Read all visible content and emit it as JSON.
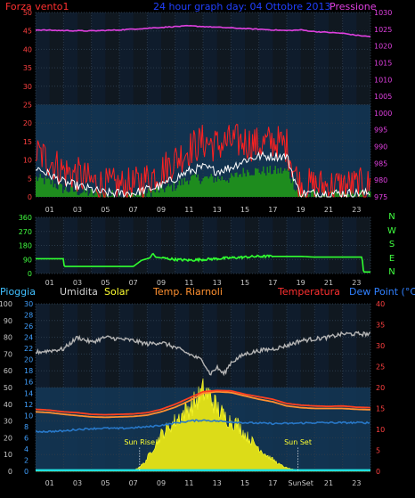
{
  "chart_data": [
    {
      "type": "line",
      "title": "24 hour graph day: 04 Ottobre 2013",
      "left_axis_title": "Forza vento1",
      "right_axis_title": "Pressione",
      "x_ticks": [
        "01",
        "03",
        "05",
        "07",
        "09",
        "11",
        "13",
        "15",
        "17",
        "19",
        "21",
        "23"
      ],
      "x_range_hours": [
        0,
        24
      ],
      "ylim_left": [
        0,
        50
      ],
      "y_ticks_left": [
        0,
        5,
        10,
        15,
        20,
        25,
        30,
        35,
        40,
        45,
        50
      ],
      "ylim_right": [
        975,
        1030
      ],
      "y_ticks_right": [
        975,
        980,
        985,
        990,
        995,
        1000,
        1005,
        1010,
        1015,
        1020,
        1025,
        1030
      ],
      "grid": true,
      "series": [
        {
          "key": "pressure",
          "axis": "right",
          "color": "#e040e0",
          "x": [
            0,
            2,
            4,
            6,
            8,
            10,
            11,
            12,
            14,
            16,
            17,
            18,
            19,
            20,
            22,
            23,
            24
          ],
          "y": [
            1024.8,
            1024.6,
            1024.5,
            1024.8,
            1025.3,
            1025.8,
            1026.0,
            1025.8,
            1025.4,
            1025.0,
            1024.8,
            1024.6,
            1024.8,
            1024.3,
            1023.8,
            1023.2,
            1022.8
          ]
        },
        {
          "key": "wind_gust",
          "axis": "left",
          "color": "#ff2020",
          "x": [
            0,
            1,
            2,
            3,
            4,
            5,
            6,
            7,
            8,
            9,
            10,
            11,
            12,
            13,
            14,
            15,
            16,
            17,
            18,
            18.8,
            19,
            20,
            21,
            22,
            23,
            24
          ],
          "y": [
            12,
            10,
            7,
            6,
            4,
            3,
            3,
            3,
            5,
            7,
            10,
            13,
            15,
            14,
            15,
            15,
            14,
            15,
            14,
            4,
            3,
            3,
            3,
            3,
            3,
            3
          ]
        },
        {
          "key": "wind_avg",
          "axis": "left",
          "color": "#ffffff",
          "x": [
            0,
            1,
            2,
            3,
            4,
            5,
            6,
            7,
            8,
            9,
            10,
            11,
            12,
            13,
            14,
            15,
            16,
            17,
            18,
            18.8,
            19,
            20,
            21,
            22,
            23,
            24
          ],
          "y": [
            8,
            6,
            4,
            3,
            2,
            1,
            1,
            1,
            2,
            3,
            5,
            7,
            8,
            7,
            8,
            10,
            11,
            11,
            11,
            2,
            1,
            1,
            1,
            1,
            1,
            1
          ]
        },
        {
          "key": "wind_fill",
          "axis": "left",
          "color": "#1e8c1e",
          "x": [
            0,
            1,
            2,
            3,
            4,
            5,
            6,
            7,
            8,
            9,
            10,
            11,
            12,
            13,
            14,
            15,
            16,
            17,
            18,
            18.8,
            19,
            20,
            21,
            22,
            23,
            24
          ],
          "y": [
            5,
            4,
            2,
            1.5,
            1,
            0.5,
            0.5,
            0.5,
            1,
            2,
            3,
            5,
            5,
            5,
            5,
            7,
            7,
            7,
            7,
            1,
            0.5,
            0.5,
            0.5,
            0.5,
            0.5,
            0.5
          ]
        }
      ]
    },
    {
      "type": "line",
      "x_ticks": [
        "01",
        "03",
        "05",
        "07",
        "09",
        "11",
        "13",
        "15",
        "17",
        "19",
        "21",
        "23"
      ],
      "ylim": [
        0,
        360
      ],
      "y_ticks": [
        0,
        90,
        180,
        270,
        360
      ],
      "compass_labels": [
        "N",
        "W",
        "S",
        "E",
        "N"
      ],
      "grid": true,
      "series": [
        {
          "key": "wind_dir",
          "color": "#30ff30",
          "x": [
            0,
            2,
            2.05,
            5,
            7,
            7.6,
            8.2,
            8.4,
            8.6,
            9,
            10,
            11,
            12,
            13,
            14,
            15,
            16,
            17,
            18,
            19,
            20,
            21,
            22,
            23,
            23.4,
            23.5,
            24
          ],
          "y": [
            95,
            95,
            45,
            45,
            45,
            85,
            100,
            130,
            105,
            100,
            90,
            85,
            90,
            95,
            100,
            105,
            110,
            110,
            110,
            110,
            105,
            105,
            105,
            105,
            105,
            10,
            10
          ]
        }
      ]
    },
    {
      "type": "line",
      "legend": [
        "Pioggia",
        "Umidita",
        "Solar",
        "Temp. Riarnoli",
        "Temperatura",
        "Dew Point (°C)"
      ],
      "x_ticks": [
        "01",
        "03",
        "05",
        "07",
        "09",
        "11",
        "13",
        "15",
        "17",
        "19",
        "21",
        "23"
      ],
      "x_tick_special": "SunSet",
      "ylim_left": [
        0,
        100
      ],
      "y_ticks_left": [
        0,
        10,
        20,
        30,
        40,
        50,
        60,
        70,
        80,
        90,
        100
      ],
      "y_ticks_inner": [
        0,
        2,
        4,
        6,
        8,
        10,
        12,
        14,
        16,
        18,
        20,
        22,
        24,
        26,
        28,
        30
      ],
      "ylim_right": [
        0,
        40
      ],
      "y_ticks_right": [
        0,
        5,
        10,
        15,
        20,
        25,
        30,
        35,
        40
      ],
      "annotations": {
        "sunrise_label": "Sun Rise",
        "sunrise_hour": 7.45,
        "sunset_label": "Sun Set",
        "sunset_hour": 18.8
      },
      "grid": true,
      "series": [
        {
          "key": "humidity",
          "axis": "left",
          "color": "#b4b4b4",
          "x": [
            0,
            1,
            2,
            3,
            4,
            5,
            6,
            7,
            8,
            9,
            10,
            11,
            12,
            12.5,
            13,
            13.5,
            14,
            15,
            16,
            17,
            18,
            19,
            20,
            21,
            22,
            23,
            24
          ],
          "y": [
            71,
            72,
            73,
            80,
            77,
            80,
            79,
            78,
            76,
            77,
            74,
            70,
            66,
            58,
            62,
            58,
            65,
            70,
            72,
            73,
            75,
            78,
            79,
            80,
            82,
            82,
            82
          ]
        },
        {
          "key": "solar",
          "axis": "left",
          "color": "#ffff30",
          "fill": "#dcdc18",
          "x": [
            0,
            7,
            7.8,
            8.5,
            9,
            10,
            11,
            11.5,
            12,
            12.5,
            13,
            13.5,
            14,
            14.5,
            15,
            15.5,
            16,
            16.5,
            17,
            17.5,
            18,
            18.5,
            19,
            24
          ],
          "y": [
            0,
            0,
            5,
            15,
            22,
            30,
            38,
            42,
            48,
            45,
            38,
            33,
            30,
            28,
            22,
            18,
            14,
            10,
            7,
            4,
            2,
            1,
            0,
            0
          ]
        },
        {
          "key": "temperature",
          "axis": "right",
          "color": "#ff4020",
          "x": [
            0,
            1,
            2,
            3,
            4,
            5,
            6,
            7,
            8,
            9,
            10,
            11,
            12,
            13,
            14,
            15,
            16,
            17,
            18,
            19,
            20,
            21,
            22,
            23,
            24
          ],
          "y": [
            14.8,
            14.6,
            14.2,
            14.0,
            13.6,
            13.5,
            13.6,
            13.7,
            14.0,
            14.8,
            16.0,
            17.5,
            19.0,
            19.3,
            19.2,
            18.4,
            17.8,
            17.2,
            16.2,
            15.8,
            15.6,
            15.5,
            15.6,
            15.3,
            15.2
          ]
        },
        {
          "key": "temp_apparent",
          "axis": "right",
          "color": "#ff9030",
          "x": [
            0,
            1,
            2,
            3,
            4,
            5,
            6,
            7,
            8,
            9,
            10,
            11,
            12,
            13,
            14,
            15,
            16,
            17,
            18,
            19,
            20,
            21,
            22,
            23,
            24
          ],
          "y": [
            14.2,
            14.0,
            13.6,
            13.3,
            13.0,
            12.9,
            13.0,
            13.1,
            13.4,
            14.2,
            15.3,
            16.8,
            18.6,
            19.0,
            18.8,
            18.0,
            17.2,
            16.6,
            15.6,
            15.2,
            15.0,
            15.0,
            15.0,
            14.8,
            14.7
          ]
        },
        {
          "key": "dew_point",
          "axis": "right",
          "color": "#2878c8",
          "x": [
            0,
            1,
            2,
            3,
            4,
            5,
            6,
            7,
            8,
            9,
            10,
            11,
            12,
            13,
            14,
            15,
            16,
            17,
            18,
            19,
            20,
            21,
            22,
            23,
            24
          ],
          "y": [
            9.5,
            9.5,
            9.6,
            10.0,
            10.2,
            10.3,
            10.2,
            10.4,
            10.6,
            11.0,
            11.5,
            12.0,
            12.2,
            12.0,
            11.8,
            11.6,
            11.5,
            11.4,
            11.4,
            11.5,
            11.6,
            11.6,
            11.6,
            11.6,
            11.6
          ]
        },
        {
          "key": "rain",
          "axis": "left",
          "color": "#20e0e0",
          "x": [
            0,
            24
          ],
          "y": [
            0.6,
            0.6
          ]
        }
      ]
    }
  ]
}
